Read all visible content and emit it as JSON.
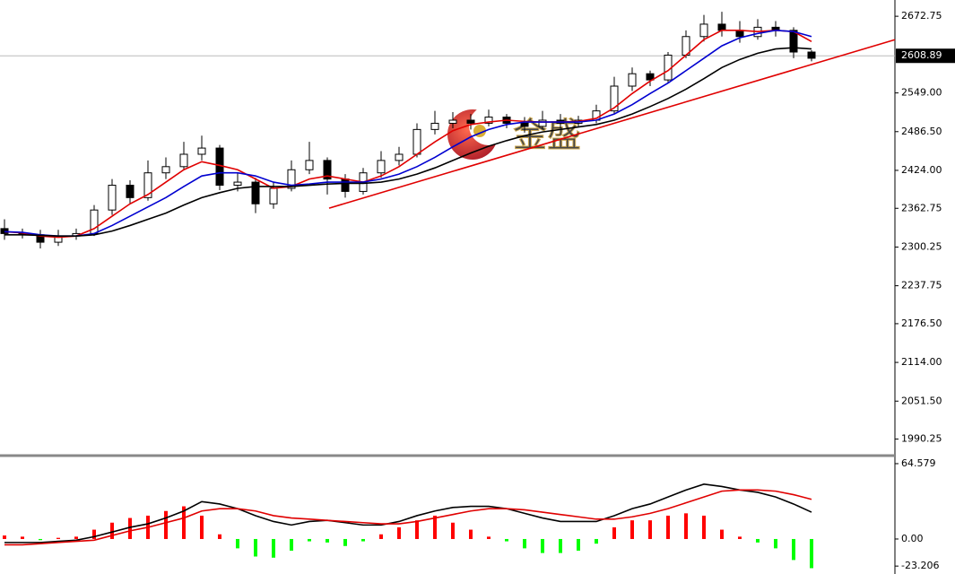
{
  "watermark": "金盛",
  "chart_data": [
    {
      "type": "candlestick",
      "open": [
        2330,
        2322,
        2320,
        2308,
        2318,
        2322,
        2360,
        2400,
        2380,
        2420,
        2430,
        2450,
        2460,
        2400,
        2405,
        2370,
        2395,
        2425,
        2440,
        2410,
        2390,
        2420,
        2440,
        2450,
        2490,
        2500,
        2505,
        2500,
        2510,
        2500,
        2495,
        2505,
        2500,
        2505,
        2520,
        2560,
        2580,
        2570,
        2610,
        2640,
        2660,
        2650,
        2640,
        2655,
        2650,
        2615
      ],
      "high": [
        2345,
        2330,
        2328,
        2328,
        2330,
        2368,
        2410,
        2408,
        2440,
        2445,
        2470,
        2480,
        2465,
        2420,
        2412,
        2405,
        2440,
        2470,
        2445,
        2418,
        2428,
        2455,
        2462,
        2500,
        2520,
        2518,
        2515,
        2522,
        2515,
        2510,
        2520,
        2515,
        2512,
        2530,
        2575,
        2590,
        2585,
        2615,
        2650,
        2675,
        2680,
        2665,
        2668,
        2665,
        2655,
        2618
      ],
      "low": [
        2312,
        2314,
        2298,
        2302,
        2312,
        2318,
        2352,
        2370,
        2375,
        2410,
        2425,
        2440,
        2392,
        2390,
        2355,
        2362,
        2390,
        2418,
        2385,
        2380,
        2385,
        2412,
        2432,
        2445,
        2482,
        2492,
        2490,
        2495,
        2492,
        2485,
        2490,
        2492,
        2495,
        2500,
        2515,
        2552,
        2560,
        2565,
        2605,
        2632,
        2640,
        2630,
        2635,
        2640,
        2605,
        2600
      ],
      "close": [
        2322,
        2320,
        2308,
        2318,
        2322,
        2360,
        2400,
        2380,
        2420,
        2430,
        2450,
        2460,
        2400,
        2405,
        2370,
        2395,
        2425,
        2440,
        2410,
        2390,
        2420,
        2440,
        2450,
        2490,
        2500,
        2505,
        2500,
        2510,
        2500,
        2495,
        2505,
        2500,
        2505,
        2520,
        2560,
        2580,
        2570,
        2610,
        2640,
        2660,
        2650,
        2640,
        2655,
        2650,
        2615,
        2605
      ],
      "up_color": "#ffffff",
      "down_color": "#000000",
      "series": [
        {
          "color": "#e00000",
          "values": [
            2325,
            2323,
            2318,
            2316,
            2318,
            2330,
            2350,
            2370,
            2385,
            2405,
            2425,
            2438,
            2432,
            2425,
            2410,
            2395,
            2398,
            2410,
            2415,
            2410,
            2405,
            2415,
            2430,
            2450,
            2470,
            2488,
            2498,
            2502,
            2505,
            2503,
            2502,
            2502,
            2503,
            2508,
            2525,
            2548,
            2568,
            2585,
            2610,
            2635,
            2650,
            2650,
            2648,
            2650,
            2648,
            2632
          ]
        },
        {
          "color": "#0000d0",
          "values": [
            2325,
            2324,
            2320,
            2318,
            2318,
            2322,
            2335,
            2350,
            2365,
            2380,
            2398,
            2415,
            2420,
            2420,
            2415,
            2405,
            2400,
            2402,
            2405,
            2405,
            2405,
            2410,
            2418,
            2430,
            2445,
            2462,
            2478,
            2490,
            2498,
            2502,
            2502,
            2502,
            2502,
            2505,
            2515,
            2530,
            2548,
            2565,
            2585,
            2605,
            2625,
            2638,
            2645,
            2650,
            2648,
            2640
          ]
        },
        {
          "color": "#000000",
          "values": [
            2320,
            2320,
            2319,
            2318,
            2318,
            2320,
            2326,
            2335,
            2345,
            2355,
            2368,
            2380,
            2388,
            2395,
            2398,
            2398,
            2398,
            2400,
            2402,
            2403,
            2403,
            2405,
            2410,
            2418,
            2428,
            2440,
            2452,
            2463,
            2472,
            2480,
            2486,
            2490,
            2494,
            2498,
            2505,
            2515,
            2527,
            2540,
            2555,
            2572,
            2590,
            2603,
            2613,
            2620,
            2622,
            2620
          ]
        }
      ],
      "trendline": {
        "color": "#e00000",
        "x": [
          18.1,
          49.65
        ],
        "values": [
          2363,
          2635
        ]
      },
      "last_price": 2608.89,
      "ylim": [
        1965,
        2699
      ],
      "yticks": [
        2672.75,
        {
          "value": 2549,
          "label": "2549.00"
        },
        {
          "value": 2486.5,
          "label": "2486.50"
        },
        {
          "value": 2424,
          "label": "2424.00"
        },
        2362.75,
        2300.25,
        2237.75,
        {
          "value": 2176.5,
          "label": "2176.50"
        },
        {
          "value": 2114,
          "label": "2114.00"
        },
        {
          "value": 2051.5,
          "label": "2051.50"
        },
        1990.25
      ]
    },
    {
      "type": "macd",
      "histogram": {
        "up_color": "#ff0000",
        "down_color": "#00ff00",
        "values": [
          3,
          2,
          -1,
          1,
          2,
          8,
          14,
          18,
          20,
          24,
          28,
          20,
          4,
          -8,
          -15,
          -16,
          -10,
          -2,
          -3,
          -6,
          -2,
          4,
          10,
          16,
          20,
          14,
          8,
          2,
          -2,
          -8,
          -12,
          -12,
          -10,
          -4,
          10,
          16,
          16,
          20,
          22,
          20,
          8,
          2,
          -3,
          -8,
          -18,
          -25
        ]
      },
      "series": [
        {
          "color": "#000000",
          "values": [
            -3,
            -3,
            -3,
            -2,
            -1,
            2,
            6,
            10,
            13,
            18,
            24,
            32,
            30,
            26,
            20,
            15,
            12,
            15,
            16,
            14,
            12,
            12,
            15,
            20,
            24,
            27,
            28,
            28,
            26,
            22,
            18,
            15,
            15,
            15,
            20,
            26,
            30,
            36,
            42,
            47,
            45,
            42,
            40,
            36,
            30,
            23
          ]
        },
        {
          "color": "#e00000",
          "values": [
            -5,
            -5,
            -4,
            -3,
            -2,
            -1,
            3,
            7,
            10,
            14,
            18,
            24,
            26,
            26,
            24,
            20,
            18,
            17,
            16,
            15,
            14,
            13,
            13,
            15,
            18,
            21,
            24,
            26,
            26,
            25,
            23,
            21,
            19,
            17,
            17,
            19,
            22,
            26,
            31,
            36,
            41,
            42,
            42,
            41,
            38,
            34
          ]
        }
      ],
      "ylim": [
        -30,
        70.7
      ],
      "yticks": [
        64.579,
        {
          "value": 0,
          "label": "0.00"
        },
        -23.206
      ]
    }
  ]
}
